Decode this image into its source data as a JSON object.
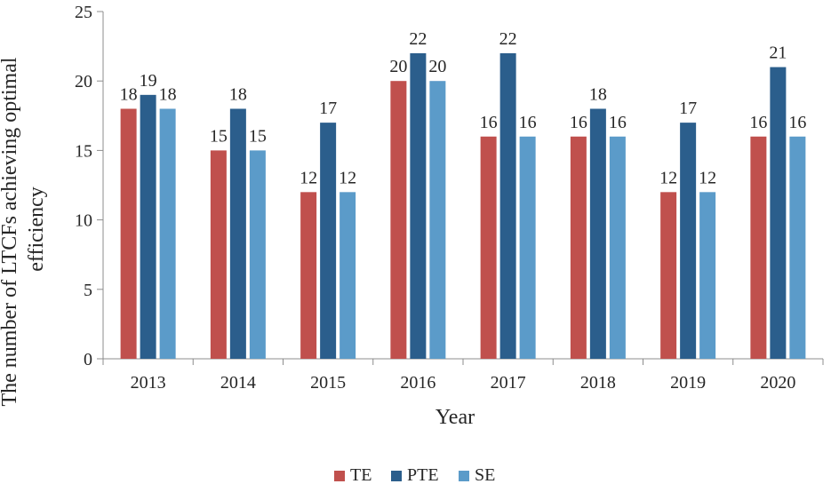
{
  "chart_data": {
    "type": "bar",
    "xlabel": "Year",
    "ylabel": "The number of LTCFs achieving optimal efficiency",
    "ylim": [
      0,
      25
    ],
    "ytick_step": 5,
    "grid": false,
    "legend_position": "bottom",
    "categories": [
      "2013",
      "2014",
      "2015",
      "2016",
      "2017",
      "2018",
      "2019",
      "2020"
    ],
    "series": [
      {
        "name": "TE",
        "color": "#c0504d",
        "values": [
          18,
          15,
          12,
          20,
          16,
          16,
          12,
          16
        ]
      },
      {
        "name": "PTE",
        "color": "#2b5e8c",
        "values": [
          19,
          18,
          17,
          22,
          22,
          18,
          17,
          21
        ]
      },
      {
        "name": "SE",
        "color": "#5b9bc9",
        "values": [
          18,
          15,
          12,
          20,
          16,
          16,
          12,
          16
        ]
      }
    ]
  }
}
